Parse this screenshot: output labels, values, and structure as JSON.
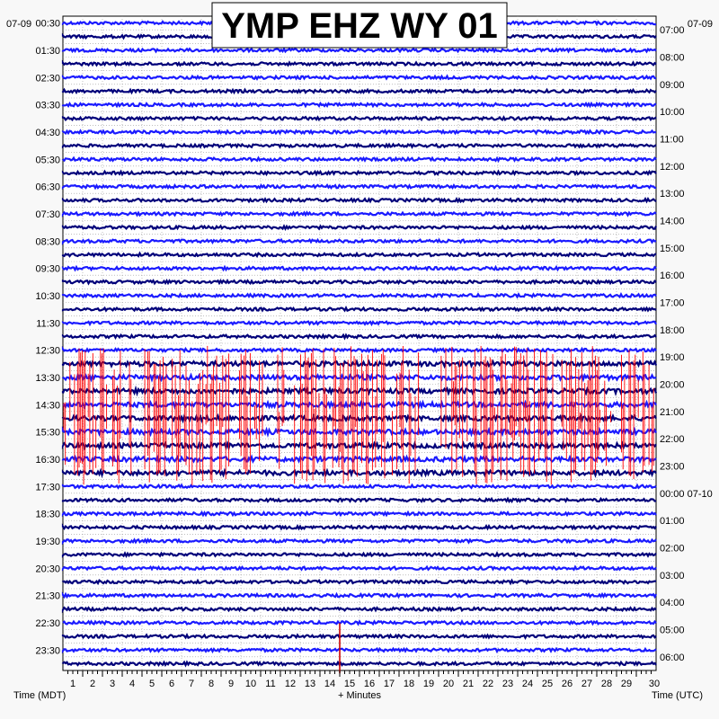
{
  "chart_data": {
    "type": "line",
    "title": "YMP EHZ WY 01",
    "date_left": "07-09",
    "date_right": "07-09",
    "xlabel_left": "Time (MDT)",
    "xlabel_center": "+ Minutes",
    "xlabel_right": "Time (UTC)",
    "x_ticks": [
      "1",
      "2",
      "3",
      "4",
      "5",
      "6",
      "7",
      "8",
      "9",
      "10",
      "11",
      "12",
      "13",
      "14",
      "15",
      "16",
      "17",
      "18",
      "19",
      "20",
      "21",
      "22",
      "23",
      "24",
      "25",
      "26",
      "27",
      "28",
      "29",
      "30"
    ],
    "xlim": [
      0,
      30
    ],
    "rows": 48,
    "row_minutes": 30,
    "left_labels": [
      "00:30",
      "01:30",
      "02:30",
      "03:30",
      "04:30",
      "05:30",
      "06:30",
      "07:30",
      "08:30",
      "09:30",
      "10:30",
      "11:30",
      "12:30",
      "13:30",
      "14:30",
      "15:30",
      "16:30",
      "17:30",
      "18:30",
      "19:30",
      "20:30",
      "21:30",
      "22:30",
      "23:30"
    ],
    "right_labels": [
      "07:00",
      "08:00",
      "09:00",
      "10:00",
      "11:00",
      "12:00",
      "13:00",
      "14:00",
      "15:00",
      "16:00",
      "17:00",
      "18:00",
      "19:00",
      "20:00",
      "21:00",
      "22:00",
      "23:00",
      "00:00 07-10",
      "01:00",
      "02:00",
      "03:00",
      "04:00",
      "05:00",
      "06:00"
    ],
    "trace_colors": [
      "#1a1aff",
      "#00007a"
    ],
    "burst_color": "#ff0000",
    "burst_rows": [
      25,
      33
    ],
    "event": {
      "row": 46,
      "minute": 14.0,
      "color": "#cc0000"
    },
    "grid": true
  }
}
